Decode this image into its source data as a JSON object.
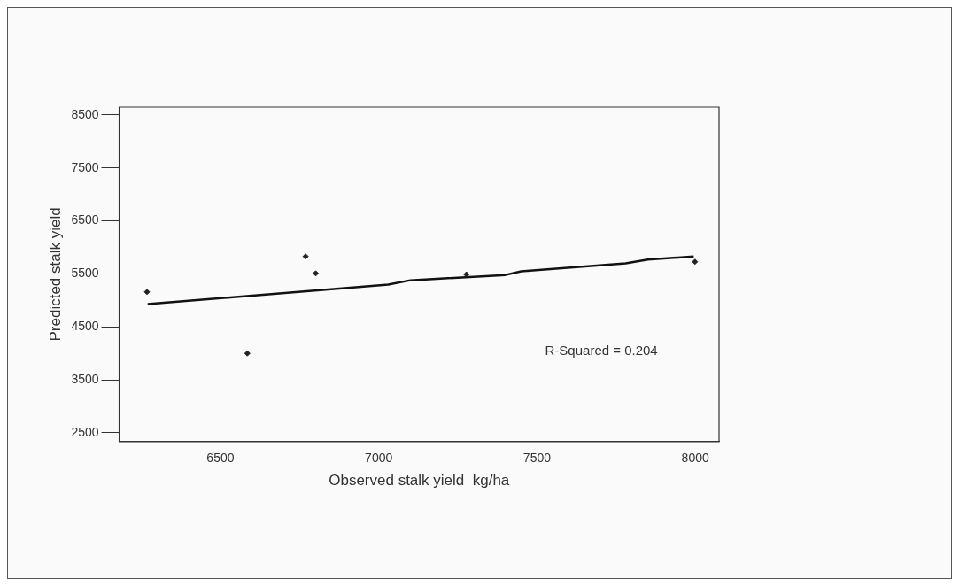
{
  "chart_data": {
    "type": "scatter",
    "xlabel": "Observed stalk yield  kg/ha",
    "ylabel": "Predicted stalk yield",
    "xlim": [
      6180,
      8075
    ],
    "xticks": [
      6500,
      7000,
      7500,
      8000
    ],
    "ylim": [
      2335,
      8650
    ],
    "yticks": [
      2500,
      3500,
      4500,
      5500,
      6500,
      7500,
      8500
    ],
    "grid": false,
    "legend": false,
    "annotations": [
      "R-Squared = 0.204"
    ],
    "series": [
      {
        "color": "#222222",
        "marker": "diamond",
        "x": [
          6268,
          6585,
          6769,
          6801,
          7277,
          7999
        ],
        "values": [
          5160,
          4000,
          5830,
          5510,
          5490,
          5730
        ]
      },
      {
        "type": "line",
        "color": "#111111",
        "marker": "none",
        "line_style": "solid",
        "x": [
          6270,
          6600,
          7030,
          7100,
          7400,
          7450,
          7780,
          7850,
          7995
        ],
        "values": [
          4930,
          5090,
          5300,
          5380,
          5480,
          5550,
          5700,
          5770,
          5830
        ]
      }
    ]
  }
}
